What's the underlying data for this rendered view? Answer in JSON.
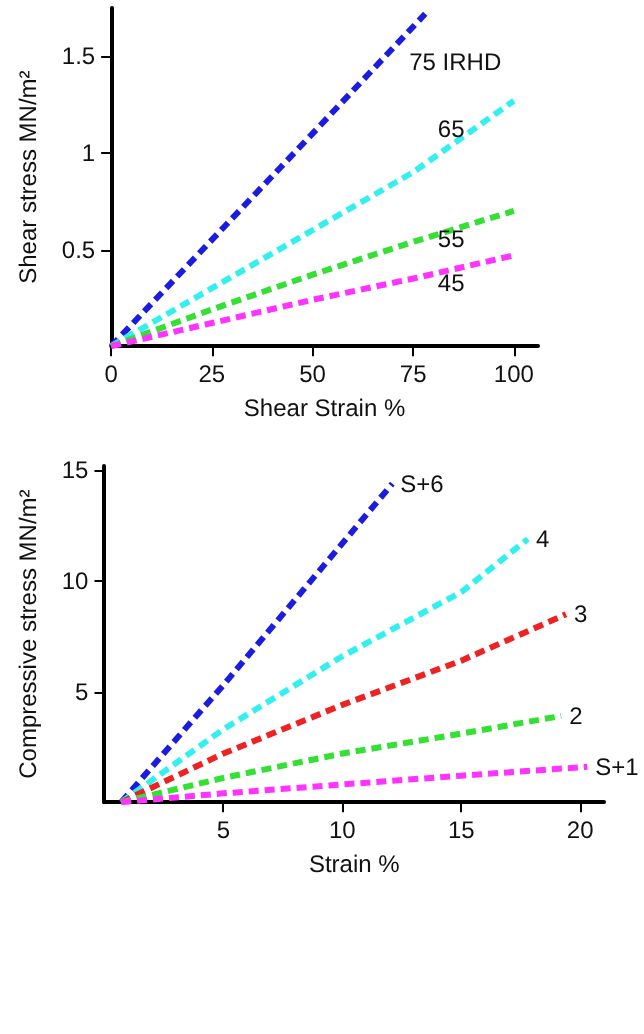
{
  "chart_data": [
    {
      "type": "line",
      "xlabel": "Shear Strain %",
      "ylabel": "Shear stress MN/m²",
      "xlim": [
        0,
        106
      ],
      "ylim": [
        0,
        1.75
      ],
      "xticks": [
        0,
        25,
        50,
        75,
        100
      ],
      "yticks": [
        0.5,
        1.0,
        1.5
      ],
      "line_style": "dashed",
      "marker": "none",
      "grid": false,
      "series": [
        {
          "name": "75 IRHD",
          "color": "#1c1ce0",
          "x": [
            0,
            25,
            50,
            78
          ],
          "values": [
            0,
            0.55,
            1.1,
            1.72
          ]
        },
        {
          "name": "65",
          "color": "#33f0f0",
          "x": [
            0,
            25,
            50,
            75,
            100
          ],
          "values": [
            0,
            0.3,
            0.6,
            0.9,
            1.27
          ]
        },
        {
          "name": "55",
          "color": "#33e033",
          "x": [
            0,
            25,
            50,
            75,
            100
          ],
          "values": [
            0,
            0.19,
            0.37,
            0.54,
            0.7
          ]
        },
        {
          "name": "45",
          "color": "#ff33ff",
          "x": [
            0,
            25,
            50,
            75,
            100
          ],
          "values": [
            0,
            0.12,
            0.24,
            0.35,
            0.47
          ]
        }
      ]
    },
    {
      "type": "line",
      "xlabel": "Strain %",
      "ylabel": "Compressive stress MN/m²",
      "xlim": [
        0,
        21
      ],
      "ylim": [
        0,
        15.2
      ],
      "xticks": [
        5,
        10,
        15,
        20
      ],
      "yticks": [
        5,
        10,
        15
      ],
      "line_style": "dashed",
      "marker": "none",
      "grid": false,
      "series": [
        {
          "name": "S+6",
          "color": "#1c1ce0",
          "x": [
            0.7,
            5,
            10,
            12.1
          ],
          "values": [
            0,
            5.3,
            11.7,
            14.4
          ]
        },
        {
          "name": "4",
          "color": "#33f0f0",
          "x": [
            0.7,
            5,
            10,
            15,
            17.8
          ],
          "values": [
            0,
            3.3,
            6.6,
            9.5,
            11.9
          ]
        },
        {
          "name": "3",
          "color": "#ee2222",
          "x": [
            0.7,
            5,
            10,
            15,
            19.4
          ],
          "values": [
            0,
            2.2,
            4.4,
            6.4,
            8.5
          ]
        },
        {
          "name": "2",
          "color": "#33e033",
          "x": [
            0.7,
            5,
            10,
            15,
            19.2
          ],
          "values": [
            0,
            1.1,
            2.2,
            3.1,
            3.9
          ]
        },
        {
          "name": "S+1",
          "color": "#ff33ff",
          "x": [
            0.7,
            5,
            10,
            15,
            20.3
          ],
          "values": [
            0,
            0.4,
            0.8,
            1.2,
            1.6
          ]
        }
      ]
    }
  ]
}
